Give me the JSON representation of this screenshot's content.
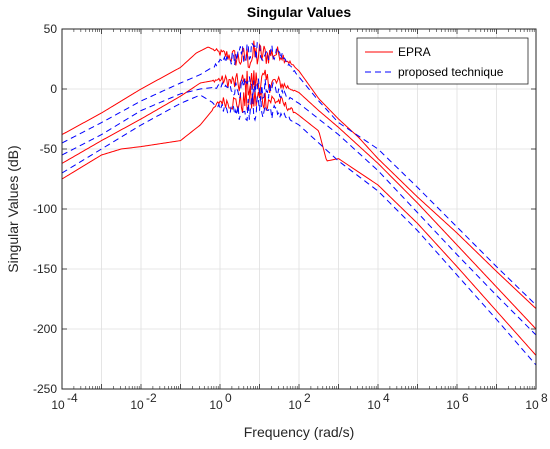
{
  "chart_data": {
    "type": "line",
    "title": "Singular Values",
    "xlabel": "Frequency (rad/s)",
    "ylabel": "Singular Values (dB)",
    "xscale": "log",
    "xlim_exponents": [
      -4,
      8
    ],
    "ylim": [
      -250,
      50
    ],
    "x_tick_labels": [
      {
        "base": "10",
        "exp": "-4"
      },
      {
        "base": "10",
        "exp": "-2"
      },
      {
        "base": "10",
        "exp": "0"
      },
      {
        "base": "10",
        "exp": "2"
      },
      {
        "base": "10",
        "exp": "4"
      },
      {
        "base": "10",
        "exp": "6"
      },
      {
        "base": "10",
        "exp": "8"
      }
    ],
    "y_ticks": [
      50,
      0,
      -50,
      -100,
      -150,
      -200,
      -250
    ],
    "grid": true,
    "legend_position": "top-right",
    "series": [
      {
        "name": "EPRA",
        "color": "#ff0000",
        "dash": "solid",
        "curves": [
          [
            [
              -4,
              -38
            ],
            [
              -3,
              -20
            ],
            [
              -2,
              0
            ],
            [
              -1,
              18
            ],
            [
              -0.6,
              30
            ],
            [
              -0.3,
              35
            ],
            [
              0,
              30
            ],
            [
              0.5,
              25
            ],
            [
              1,
              28
            ],
            [
              1.5,
              30
            ],
            [
              2,
              15
            ],
            [
              2.5,
              -8
            ],
            [
              3,
              -25
            ],
            [
              3.5,
              -40
            ],
            [
              4,
              -58
            ],
            [
              5,
              -90
            ],
            [
              6,
              -120
            ],
            [
              7,
              -152
            ],
            [
              8,
              -183
            ]
          ],
          [
            [
              -4,
              -62
            ],
            [
              -3,
              -43
            ],
            [
              -2,
              -25
            ],
            [
              -1,
              -6
            ],
            [
              -0.5,
              5
            ],
            [
              0,
              8
            ],
            [
              0.5,
              4
            ],
            [
              1,
              6
            ],
            [
              1.5,
              5
            ],
            [
              2,
              -3
            ],
            [
              2.5,
              -18
            ],
            [
              3,
              -32
            ],
            [
              4,
              -62
            ],
            [
              5,
              -95
            ],
            [
              6,
              -130
            ],
            [
              7,
              -165
            ],
            [
              8,
              -200
            ]
          ],
          [
            [
              -4,
              -75
            ],
            [
              -3,
              -55
            ],
            [
              -2.5,
              -50
            ],
            [
              -2,
              -48
            ],
            [
              -1,
              -43
            ],
            [
              -0.5,
              -30
            ],
            [
              0,
              -10
            ],
            [
              0.5,
              -12
            ],
            [
              1,
              -8
            ],
            [
              1.5,
              -10
            ],
            [
              2,
              -22
            ],
            [
              2.5,
              -35
            ],
            [
              2.7,
              -60
            ],
            [
              3,
              -58
            ],
            [
              4,
              -80
            ],
            [
              5,
              -112
            ],
            [
              6,
              -148
            ],
            [
              7,
              -185
            ],
            [
              8,
              -222
            ]
          ]
        ]
      },
      {
        "name": "proposed technique",
        "color": "#0000ff",
        "dash": "dashed",
        "curves": [
          [
            [
              -4,
              -45
            ],
            [
              -3,
              -28
            ],
            [
              -2,
              -10
            ],
            [
              -1,
              5
            ],
            [
              -0.5,
              12
            ],
            [
              0,
              22
            ],
            [
              0.5,
              28
            ],
            [
              1,
              32
            ],
            [
              1.5,
              30
            ],
            [
              2,
              10
            ],
            [
              2.5,
              -10
            ],
            [
              3,
              -28
            ],
            [
              4,
              -50
            ],
            [
              5,
              -82
            ],
            [
              6,
              -115
            ],
            [
              7,
              -148
            ],
            [
              8,
              -180
            ]
          ],
          [
            [
              -4,
              -55
            ],
            [
              -3,
              -38
            ],
            [
              -2,
              -18
            ],
            [
              -1,
              -4
            ],
            [
              -0.5,
              0
            ],
            [
              0,
              2
            ],
            [
              0.5,
              0
            ],
            [
              1,
              0
            ],
            [
              1.5,
              -2
            ],
            [
              2,
              -12
            ],
            [
              2.5,
              -25
            ],
            [
              3,
              -38
            ],
            [
              4,
              -68
            ],
            [
              5,
              -103
            ],
            [
              6,
              -138
            ],
            [
              7,
              -172
            ],
            [
              8,
              -205
            ]
          ],
          [
            [
              -4,
              -70
            ],
            [
              -3,
              -50
            ],
            [
              -2,
              -30
            ],
            [
              -1,
              -12
            ],
            [
              -0.5,
              -5
            ],
            [
              0,
              -15
            ],
            [
              0.5,
              -18
            ],
            [
              1,
              -15
            ],
            [
              1.5,
              -20
            ],
            [
              2,
              -30
            ],
            [
              2.5,
              -45
            ],
            [
              3,
              -60
            ],
            [
              4,
              -85
            ],
            [
              5,
              -118
            ],
            [
              6,
              -155
            ],
            [
              7,
              -192
            ],
            [
              8,
              -230
            ]
          ]
        ]
      }
    ]
  }
}
